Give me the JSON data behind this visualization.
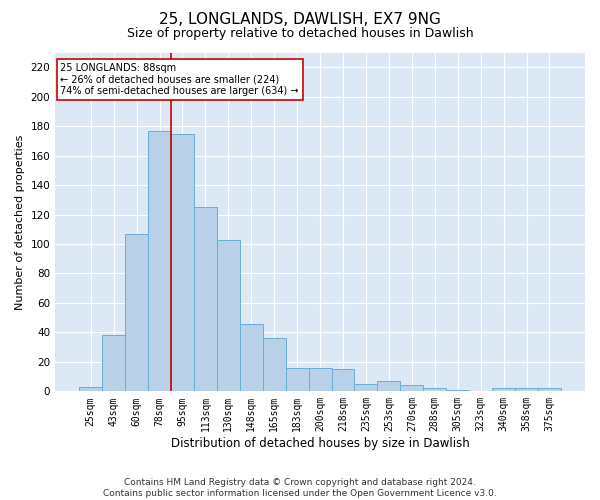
{
  "title1": "25, LONGLANDS, DAWLISH, EX7 9NG",
  "title2": "Size of property relative to detached houses in Dawlish",
  "xlabel": "Distribution of detached houses by size in Dawlish",
  "ylabel": "Number of detached properties",
  "categories": [
    "25sqm",
    "43sqm",
    "60sqm",
    "78sqm",
    "95sqm",
    "113sqm",
    "130sqm",
    "148sqm",
    "165sqm",
    "183sqm",
    "200sqm",
    "218sqm",
    "235sqm",
    "253sqm",
    "270sqm",
    "288sqm",
    "305sqm",
    "323sqm",
    "340sqm",
    "358sqm",
    "375sqm"
  ],
  "values": [
    3,
    38,
    107,
    177,
    175,
    125,
    103,
    46,
    36,
    16,
    16,
    15,
    5,
    7,
    4,
    2,
    1,
    0,
    2,
    2,
    2
  ],
  "bar_color": "#b8d0e8",
  "bar_edge_color": "#6aaed6",
  "vline_x": 3.5,
  "vline_color": "#cc0000",
  "annotation_text": "25 LONGLANDS: 88sqm\n← 26% of detached houses are smaller (224)\n74% of semi-detached houses are larger (634) →",
  "annotation_box_color": "#ffffff",
  "annotation_box_edge": "#cc0000",
  "ylim": [
    0,
    230
  ],
  "yticks": [
    0,
    20,
    40,
    60,
    80,
    100,
    120,
    140,
    160,
    180,
    200,
    220
  ],
  "footnote": "Contains HM Land Registry data © Crown copyright and database right 2024.\nContains public sector information licensed under the Open Government Licence v3.0.",
  "axes_background": "#dce9f5",
  "grid_color": "#ffffff",
  "title1_fontsize": 11,
  "title2_fontsize": 9,
  "xlabel_fontsize": 8.5,
  "ylabel_fontsize": 8,
  "tick_fontsize": 7,
  "footnote_fontsize": 6.5
}
